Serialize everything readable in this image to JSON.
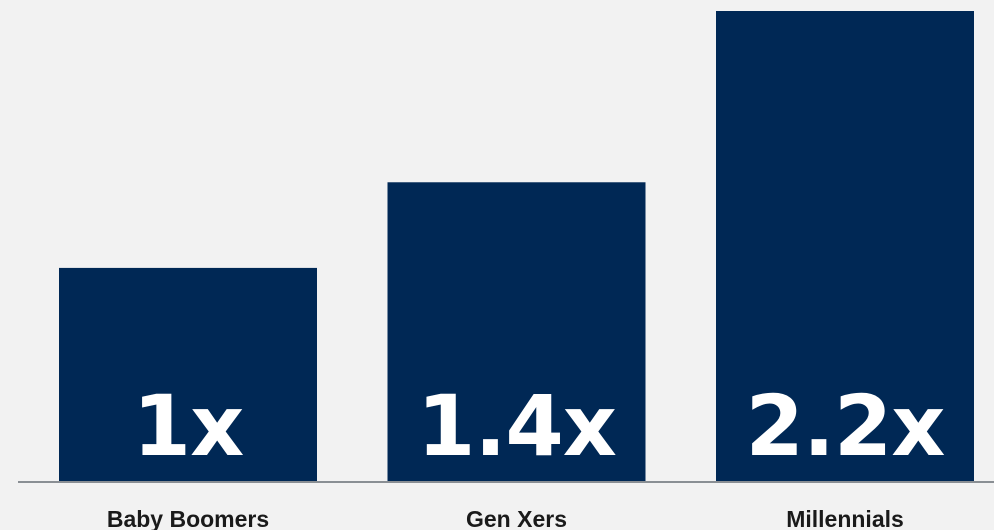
{
  "colors": {
    "background": "#f2f2f2",
    "bar": "#002855",
    "baseline": "#8a8f94",
    "value_text": "#ffffff",
    "label_text": "#1a1a1a"
  },
  "chart_data": {
    "type": "bar",
    "categories": [
      "Baby Boomers",
      "Gen Xers",
      "Millennials"
    ],
    "values": [
      1,
      1.4,
      2.2
    ],
    "value_labels": [
      "1x",
      "1.4x",
      "2.2x"
    ],
    "ylim": [
      0,
      2.2
    ],
    "grid": false,
    "legend": "none"
  }
}
